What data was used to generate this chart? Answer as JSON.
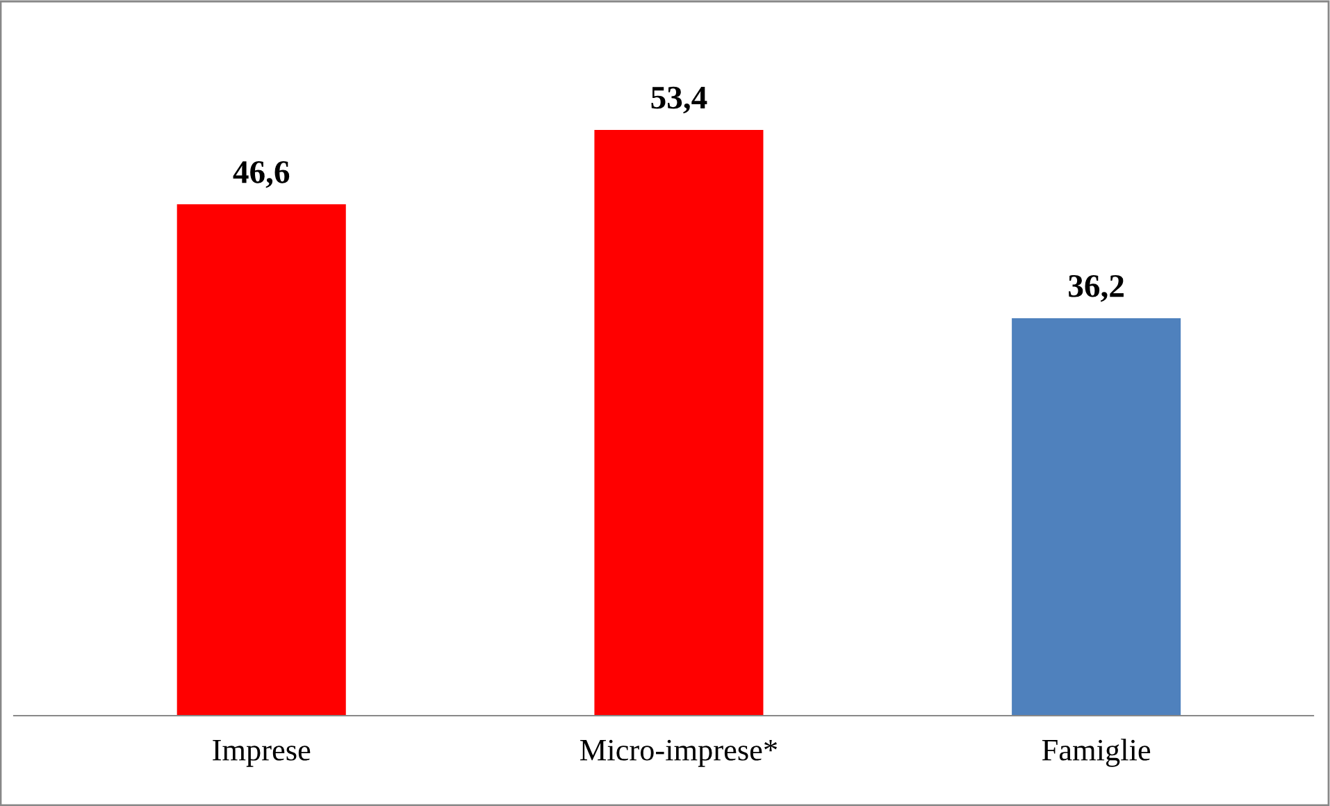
{
  "chart_data": {
    "type": "bar",
    "categories": [
      "Imprese",
      "Micro-imprese*",
      "Famiglie"
    ],
    "values": [
      46.6,
      53.4,
      36.2
    ],
    "colors": [
      "#ff0000",
      "#ff0000",
      "#4f81bd"
    ],
    "value_labels": [
      "46,6",
      "53,4",
      "36,2"
    ],
    "grid": false,
    "legend": false
  }
}
